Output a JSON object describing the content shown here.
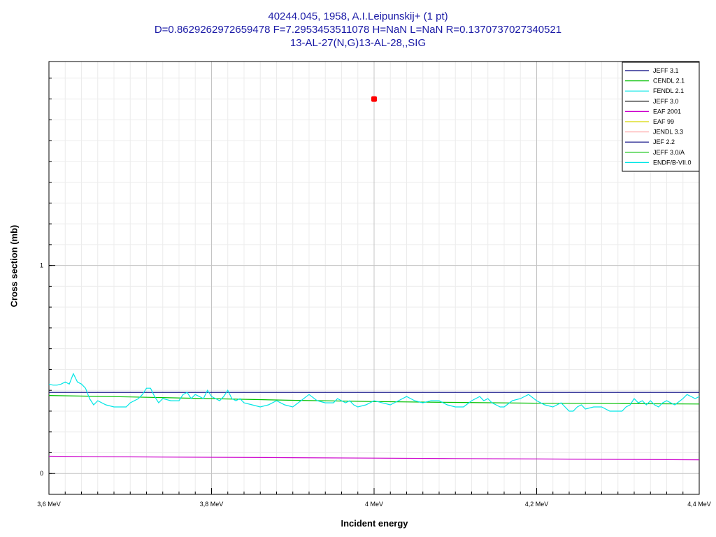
{
  "title": {
    "line1": "40244.045, 1958, A.I.Leipunskij+ (1 pt)",
    "line2": "D=0.8629262972659478 F=7.2953453511078 H=NaN L=NaN R=0.1370737027340521",
    "line3": "13-AL-27(N,G)13-AL-28,,SIG"
  },
  "chart_data": {
    "type": "line",
    "xlabel": "Incident energy",
    "ylabel": "Cross section (mb)",
    "xlim": [
      3.6,
      4.4
    ],
    "ylim": [
      -0.1,
      1.98
    ],
    "x_ticks": [
      3.6,
      3.8,
      4.0,
      4.2,
      4.4
    ],
    "x_tick_labels": [
      "3,6 MeV",
      "3,8 MeV",
      "4 MeV",
      "4,2 MeV",
      "4,4 MeV"
    ],
    "y_ticks": [
      0,
      1
    ],
    "y_tick_labels": [
      "0",
      "1"
    ],
    "grid": true,
    "legend_position": "top-right",
    "series": [
      {
        "name": "JEFF 3.1",
        "color": "#00007f",
        "x": [
          3.6,
          4.33,
          4.35,
          4.4
        ],
        "y": [
          0.39,
          0.39,
          0.39,
          0.39
        ]
      },
      {
        "name": "CENDL 2.1",
        "color": "#00c000",
        "x": [
          3.6,
          3.7,
          3.8,
          3.9,
          4.0,
          4.1,
          4.2,
          4.3,
          4.4
        ],
        "y": [
          0.375,
          0.368,
          0.36,
          0.352,
          0.346,
          0.342,
          0.338,
          0.336,
          0.334
        ]
      },
      {
        "name": "FENDL 2.1",
        "color": "#00e6e6",
        "x": [
          3.6,
          3.605,
          3.61,
          3.615,
          3.62,
          3.625,
          3.63,
          3.635,
          3.64,
          3.645,
          3.65,
          3.655,
          3.66,
          3.67,
          3.68,
          3.69,
          3.695,
          3.7,
          3.71,
          3.715,
          3.72,
          3.725,
          3.73,
          3.735,
          3.74,
          3.75,
          3.76,
          3.765,
          3.77,
          3.775,
          3.78,
          3.785,
          3.79,
          3.795,
          3.8,
          3.81,
          3.815,
          3.82,
          3.825,
          3.83,
          3.835,
          3.84,
          3.85,
          3.86,
          3.87,
          3.88,
          3.89,
          3.9,
          3.91,
          3.92,
          3.93,
          3.94,
          3.95,
          3.955,
          3.96,
          3.965,
          3.97,
          3.975,
          3.98,
          3.99,
          4.0,
          4.01,
          4.02,
          4.03,
          4.04,
          4.05,
          4.06,
          4.07,
          4.08,
          4.09,
          4.1,
          4.11,
          4.12,
          4.13,
          4.135,
          4.14,
          4.145,
          4.15,
          4.155,
          4.16,
          4.17,
          4.18,
          4.19,
          4.2,
          4.21,
          4.22,
          4.225,
          4.23,
          4.24,
          4.245,
          4.25,
          4.255,
          4.26,
          4.27,
          4.28,
          4.29,
          4.3,
          4.305,
          4.31,
          4.315,
          4.32,
          4.325,
          4.33,
          4.335,
          4.34,
          4.345,
          4.35,
          4.355,
          4.36,
          4.365,
          4.37,
          4.38,
          4.385,
          4.39,
          4.395,
          4.4
        ],
        "y": [
          0.43,
          0.425,
          0.425,
          0.43,
          0.44,
          0.43,
          0.48,
          0.44,
          0.43,
          0.41,
          0.36,
          0.33,
          0.35,
          0.33,
          0.32,
          0.32,
          0.32,
          0.34,
          0.36,
          0.38,
          0.41,
          0.41,
          0.37,
          0.34,
          0.36,
          0.35,
          0.35,
          0.38,
          0.39,
          0.36,
          0.38,
          0.37,
          0.36,
          0.4,
          0.37,
          0.35,
          0.37,
          0.4,
          0.36,
          0.35,
          0.36,
          0.34,
          0.33,
          0.32,
          0.33,
          0.35,
          0.33,
          0.32,
          0.35,
          0.38,
          0.35,
          0.34,
          0.34,
          0.36,
          0.35,
          0.34,
          0.35,
          0.33,
          0.32,
          0.33,
          0.35,
          0.34,
          0.33,
          0.35,
          0.37,
          0.35,
          0.34,
          0.35,
          0.35,
          0.33,
          0.32,
          0.32,
          0.35,
          0.37,
          0.35,
          0.36,
          0.34,
          0.33,
          0.32,
          0.32,
          0.35,
          0.36,
          0.38,
          0.35,
          0.33,
          0.32,
          0.33,
          0.34,
          0.3,
          0.3,
          0.32,
          0.33,
          0.31,
          0.32,
          0.32,
          0.3,
          0.3,
          0.3,
          0.32,
          0.33,
          0.36,
          0.34,
          0.35,
          0.33,
          0.35,
          0.33,
          0.32,
          0.34,
          0.35,
          0.34,
          0.33,
          0.36,
          0.38,
          0.37,
          0.36,
          0.37
        ]
      },
      {
        "name": "JEFF 3.0",
        "color": "#000000",
        "x": [],
        "y": []
      },
      {
        "name": "EAF 2001",
        "color": "#cc00cc",
        "x": [
          3.6,
          3.7,
          3.8,
          3.9,
          4.0,
          4.1,
          4.2,
          4.3,
          4.4
        ],
        "y": [
          0.083,
          0.08,
          0.078,
          0.076,
          0.074,
          0.072,
          0.07,
          0.068,
          0.066
        ]
      },
      {
        "name": "EAF 99",
        "color": "#d8d800",
        "x": [],
        "y": []
      },
      {
        "name": "JENDL 3.3",
        "color": "#ffb0b0",
        "x": [],
        "y": []
      },
      {
        "name": "JEF 2.2",
        "color": "#00007f",
        "x": [],
        "y": []
      },
      {
        "name": "JEFF 3.0/A",
        "color": "#00c000",
        "x": [],
        "y": []
      },
      {
        "name": "ENDF/B-VII.0",
        "color": "#00e6e6",
        "x": [],
        "y": []
      }
    ],
    "experimental_points": [
      {
        "x": 4.0,
        "y": 1.8,
        "color": "#ff0000"
      }
    ]
  }
}
